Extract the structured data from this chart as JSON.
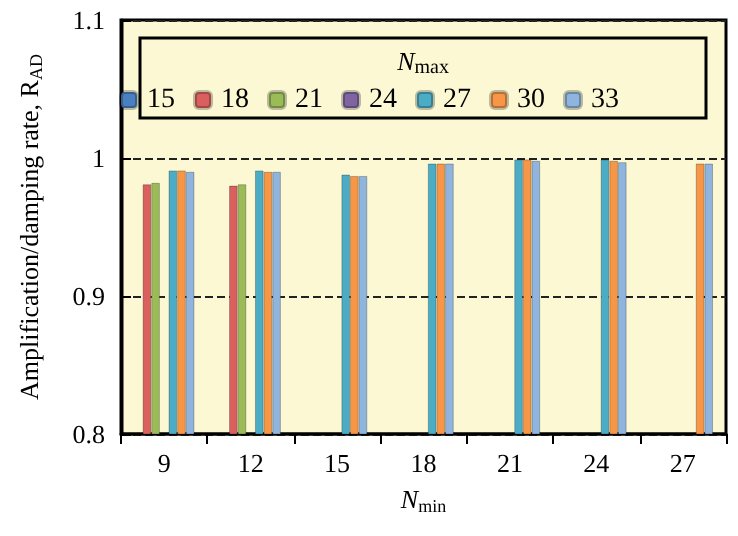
{
  "chart_data": {
    "type": "bar",
    "xlabel": "N$_{min}$",
    "ylabel": "Amplification/damping rate, R$_{AD}$",
    "legend_title": "N$_{max}$",
    "categories": [
      "9",
      "12",
      "15",
      "18",
      "21",
      "24",
      "27"
    ],
    "series": [
      {
        "name": "15",
        "color": "#4a7fc0",
        "values": [
          null,
          null,
          null,
          null,
          null,
          null,
          null
        ]
      },
      {
        "name": "18",
        "color": "#d9605f",
        "values": [
          0.981,
          0.98,
          null,
          null,
          null,
          null,
          null
        ]
      },
      {
        "name": "21",
        "color": "#9bbb59",
        "values": [
          0.982,
          0.981,
          null,
          null,
          null,
          null,
          null
        ]
      },
      {
        "name": "24",
        "color": "#8064a2",
        "values": [
          null,
          null,
          null,
          null,
          null,
          null,
          null
        ]
      },
      {
        "name": "27",
        "color": "#4bacc6",
        "values": [
          0.991,
          0.991,
          0.988,
          0.996,
          0.999,
          0.999,
          null
        ]
      },
      {
        "name": "30",
        "color": "#f79646",
        "values": [
          0.991,
          0.99,
          0.987,
          0.996,
          0.999,
          0.998,
          0.996
        ]
      },
      {
        "name": "33",
        "color": "#8fb4de",
        "values": [
          0.99,
          0.99,
          0.987,
          0.996,
          0.998,
          0.997,
          0.996
        ]
      }
    ],
    "ylim": [
      0.8,
      1.1
    ],
    "yticks": [
      0.8,
      0.9,
      1,
      1.1
    ],
    "grid": "y",
    "line_style": "dashed",
    "legend": "top"
  }
}
